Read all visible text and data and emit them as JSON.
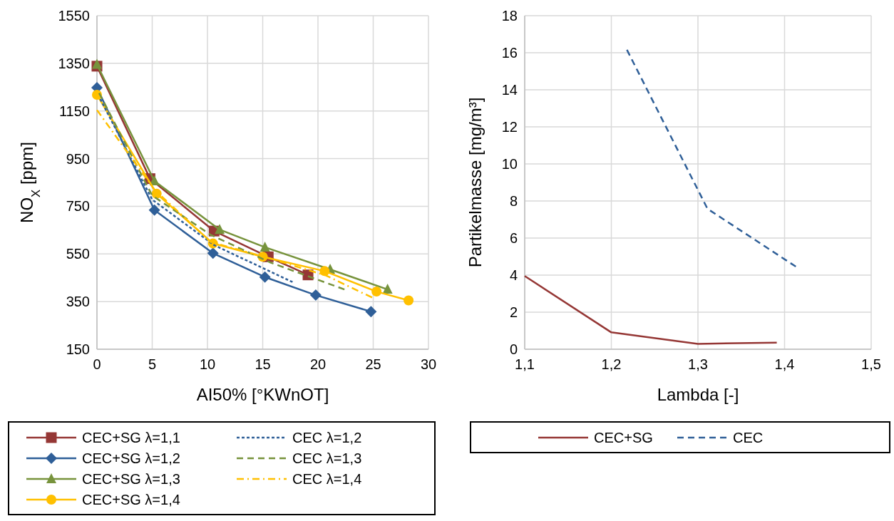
{
  "chart_data": [
    {
      "type": "line",
      "xlabel": "AI50% [°KWnOT]",
      "ylabel": "NO$_{X}$ [ppm]",
      "xlim": [
        0,
        30
      ],
      "xticks": [
        0,
        5,
        10,
        15,
        20,
        25,
        30
      ],
      "ylim": [
        150,
        1550
      ],
      "yticks": [
        150,
        350,
        550,
        750,
        950,
        1150,
        1350,
        1550
      ],
      "grid": true,
      "legend": "bottom",
      "series": [
        {
          "name": "CEC+SG λ=1,1",
          "color": "#953735",
          "marker": "square",
          "line_style": "solid",
          "x": [
            0,
            4.8,
            10.6,
            15.5,
            19.1
          ],
          "values": [
            1338,
            866,
            646,
            538,
            462
          ]
        },
        {
          "name": "CEC+SG λ=1,2",
          "color": "#2f5f98",
          "marker": "diamond",
          "line_style": "solid",
          "x": [
            0,
            5.2,
            10.5,
            15.2,
            19.8,
            24.8
          ],
          "values": [
            1248,
            734,
            553,
            453,
            377,
            308
          ]
        },
        {
          "name": "CEC+SG λ=1,3",
          "color": "#77933c",
          "marker": "triangle",
          "line_style": "solid",
          "x": [
            0,
            5.2,
            11.1,
            15.2,
            21.1,
            26.3
          ],
          "values": [
            1345,
            856,
            652,
            578,
            485,
            401
          ]
        },
        {
          "name": "CEC+SG λ=1,4",
          "color": "#ffc000",
          "marker": "circle",
          "line_style": "solid",
          "x": [
            0,
            5.4,
            10.5,
            15.0,
            20.6,
            25.3,
            28.2
          ],
          "values": [
            1218,
            803,
            594,
            538,
            478,
            392,
            355
          ]
        },
        {
          "name": "CEC λ=1,2",
          "color": "#2f5f98",
          "marker": "none",
          "line_style": "dotted",
          "x": [
            0.3,
            5.0,
            10.6,
            17.7
          ],
          "values": [
            1200,
            778,
            587,
            432
          ]
        },
        {
          "name": "CEC λ=1,3",
          "color": "#77933c",
          "marker": "none",
          "line_style": "dashed",
          "x": [
            0.2,
            5.0,
            10.3,
            15.7,
            22.4
          ],
          "values": [
            1225,
            795,
            630,
            514,
            401
          ]
        },
        {
          "name": "CEC λ=1,4",
          "color": "#ffc000",
          "marker": "none",
          "line_style": "dashdot",
          "x": [
            0,
            5.2,
            10.3,
            15.0,
            20.7,
            24.9
          ],
          "values": [
            1154,
            820,
            600,
            540,
            460,
            367
          ]
        }
      ]
    },
    {
      "type": "line",
      "xlabel": "Lambda [-]",
      "ylabel": "Partikelmasse [mg/m³]",
      "xlim": [
        1.1,
        1.5
      ],
      "xticks": [
        {
          "value": 1.1,
          "label": "1,1"
        },
        {
          "value": 1.2,
          "label": "1,2"
        },
        {
          "value": 1.3,
          "label": "1,3"
        },
        {
          "value": 1.4,
          "label": "1,4"
        },
        {
          "value": 1.5,
          "label": "1,5"
        }
      ],
      "ylim": [
        0,
        18
      ],
      "yticks": [
        0,
        2,
        4,
        6,
        8,
        10,
        12,
        14,
        16,
        18
      ],
      "grid": true,
      "legend": "bottom",
      "series": [
        {
          "name": "CEC+SG",
          "color": "#953735",
          "marker": "none",
          "line_style": "solid",
          "x": [
            1.1,
            1.2,
            1.3,
            1.391
          ],
          "values": [
            3.95,
            0.91,
            0.29,
            0.36
          ]
        },
        {
          "name": "CEC",
          "color": "#2f5f98",
          "marker": "none",
          "line_style": "dashed",
          "x": [
            1.218,
            1.311,
            1.413
          ],
          "values": [
            16.16,
            7.58,
            4.46
          ]
        }
      ]
    }
  ]
}
